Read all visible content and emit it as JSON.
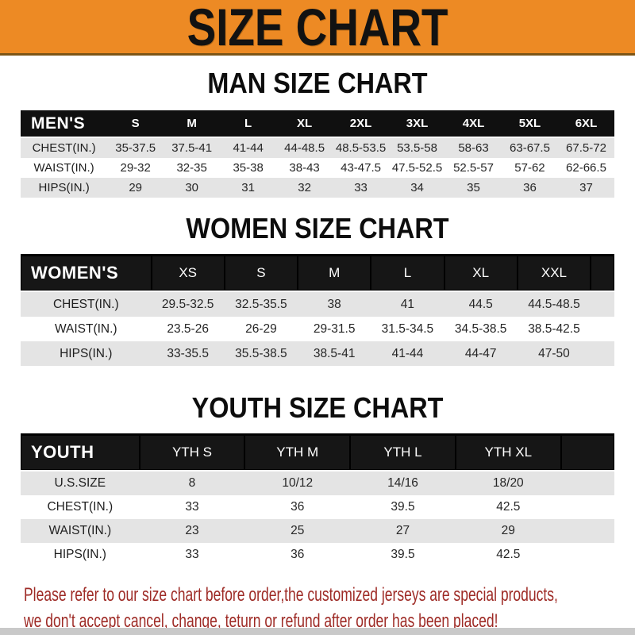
{
  "banner": {
    "title": "SIZE CHART"
  },
  "sections": {
    "men": {
      "heading": "MAN SIZE CHART",
      "table": {
        "header": [
          "MEN'S",
          "S",
          "M",
          "L",
          "XL",
          "2XL",
          "3XL",
          "4XL",
          "5XL",
          "6XL"
        ],
        "rows": [
          [
            "CHEST(IN.)",
            "35-37.5",
            "37.5-41",
            "41-44",
            "44-48.5",
            "48.5-53.5",
            "53.5-58",
            "58-63",
            "63-67.5",
            "67.5-72"
          ],
          [
            "WAIST(IN.)",
            "29-32",
            "32-35",
            "35-38",
            "38-43",
            "43-47.5",
            "47.5-52.5",
            "52.5-57",
            "57-62",
            "62-66.5"
          ],
          [
            "HIPS(IN.)",
            "29",
            "30",
            "31",
            "32",
            "33",
            "34",
            "35",
            "36",
            "37"
          ]
        ]
      }
    },
    "women": {
      "heading": "WOMEN SIZE CHART",
      "table": {
        "header": [
          "WOMEN'S",
          "XS",
          "S",
          "M",
          "L",
          "XL",
          "XXL"
        ],
        "rows": [
          [
            "CHEST(IN.)",
            "29.5-32.5",
            "32.5-35.5",
            "38",
            "41",
            "44.5",
            "44.5-48.5"
          ],
          [
            "WAIST(IN.)",
            "23.5-26",
            "26-29",
            "29-31.5",
            "31.5-34.5",
            "34.5-38.5",
            "38.5-42.5"
          ],
          [
            "HIPS(IN.)",
            "33-35.5",
            "35.5-38.5",
            "38.5-41",
            "41-44",
            "44-47",
            "47-50"
          ]
        ]
      }
    },
    "youth": {
      "heading": "YOUTH SIZE CHART",
      "table": {
        "header": [
          "YOUTH",
          "YTH S",
          "YTH M",
          "YTH L",
          "YTH XL"
        ],
        "rows": [
          [
            "U.S.SIZE",
            "8",
            "10/12",
            "14/16",
            "18/20"
          ],
          [
            "CHEST(IN.)",
            "33",
            "36",
            "39.5",
            "42.5"
          ],
          [
            "WAIST(IN.)",
            "23",
            "25",
            "27",
            "29"
          ],
          [
            "HIPS(IN.)",
            "33",
            "36",
            "39.5",
            "42.5"
          ]
        ]
      }
    }
  },
  "footer": {
    "line1": "Please refer to our size chart before order,the customized jerseys are special products,",
    "line2": "we don't accept cancel, change, teturn or refund after order has been placed!"
  },
  "colors": {
    "banner_bg": "#ED8A24",
    "header_bar": "#101010",
    "row_stripe": "#E4E4E4",
    "footer_text": "#9E2B26"
  }
}
